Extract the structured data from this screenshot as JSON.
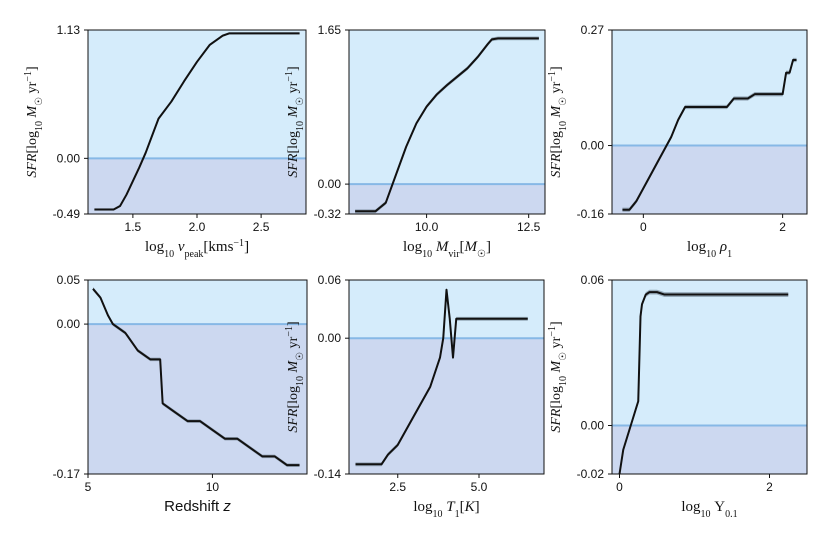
{
  "colors": {
    "above_zero_fill": "#d5ecfb",
    "below_zero_fill": "#ccd8f0",
    "zero_line": "#86b8e6",
    "curve": "#111111",
    "band": "#6d7f8e"
  },
  "chart_data": [
    {
      "type": "line",
      "title": "",
      "xlabel": "log10 v_peak [km s^-1]",
      "ylabel": "SFR [log10 M☉ yr^-1]",
      "xlim": [
        1.15,
        2.85
      ],
      "ylim": [
        -0.49,
        1.13
      ],
      "xticks": [
        1.5,
        2.0,
        2.5
      ],
      "xtick_labels": [
        "1.5",
        "2.0",
        "2.5"
      ],
      "yticks": [
        -0.49,
        0.0,
        1.13
      ],
      "ytick_labels": [
        "-0.49",
        "0.00",
        "1.13"
      ],
      "zero_line": 0.0,
      "x": [
        1.2,
        1.25,
        1.3,
        1.35,
        1.4,
        1.45,
        1.5,
        1.55,
        1.6,
        1.65,
        1.7,
        1.8,
        1.9,
        2.0,
        2.1,
        2.2,
        2.25,
        2.3,
        2.4,
        2.5,
        2.6,
        2.7,
        2.8
      ],
      "y": [
        -0.45,
        -0.45,
        -0.45,
        -0.45,
        -0.42,
        -0.32,
        -0.2,
        -0.08,
        0.05,
        0.2,
        0.35,
        0.5,
        0.68,
        0.85,
        1.0,
        1.08,
        1.1,
        1.1,
        1.1,
        1.1,
        1.1,
        1.1,
        1.1
      ],
      "band": 0.01
    },
    {
      "type": "line",
      "title": "",
      "xlabel": "log10 M_vir [M☉]",
      "ylabel": "SFR [log10 M☉ yr^-1]",
      "xlim": [
        8.1,
        12.9
      ],
      "ylim": [
        -0.32,
        1.65
      ],
      "xticks": [
        10.0,
        12.5
      ],
      "xtick_labels": [
        "10.0",
        "12.5"
      ],
      "yticks": [
        -0.32,
        0.0,
        1.65
      ],
      "ytick_labels": [
        "-0.32",
        "0.00",
        "1.65"
      ],
      "zero_line": 0.0,
      "x": [
        8.25,
        8.5,
        8.75,
        9.0,
        9.25,
        9.5,
        9.75,
        10.0,
        10.25,
        10.5,
        10.75,
        11.0,
        11.25,
        11.5,
        11.6,
        11.75,
        12.0,
        12.25,
        12.5,
        12.75
      ],
      "y": [
        -0.29,
        -0.29,
        -0.29,
        -0.2,
        0.1,
        0.4,
        0.65,
        0.83,
        0.96,
        1.06,
        1.15,
        1.24,
        1.36,
        1.5,
        1.55,
        1.56,
        1.56,
        1.56,
        1.56,
        1.56
      ],
      "band": 0.02
    },
    {
      "type": "line",
      "title": "",
      "xlabel": "log10 ρ1",
      "ylabel": "SFR [log10 M☉ yr^-1]",
      "xlim": [
        -0.45,
        2.35
      ],
      "ylim": [
        -0.16,
        0.27
      ],
      "xticks": [
        0.0,
        2.0
      ],
      "xtick_labels": [
        "0",
        "2"
      ],
      "yticks": [
        -0.16,
        0.0,
        0.27
      ],
      "ytick_labels": [
        "-0.16",
        "0.00",
        "0.27"
      ],
      "zero_line": 0.0,
      "x": [
        -0.3,
        -0.2,
        -0.1,
        0.0,
        0.1,
        0.2,
        0.3,
        0.4,
        0.5,
        0.6,
        0.7,
        0.8,
        1.0,
        1.2,
        1.3,
        1.5,
        1.6,
        1.8,
        2.0,
        2.05,
        2.1,
        2.15,
        2.2
      ],
      "y": [
        -0.15,
        -0.15,
        -0.13,
        -0.1,
        -0.07,
        -0.04,
        -0.01,
        0.02,
        0.06,
        0.09,
        0.09,
        0.09,
        0.09,
        0.09,
        0.11,
        0.11,
        0.12,
        0.12,
        0.12,
        0.17,
        0.17,
        0.2,
        0.2
      ],
      "band": 0.005
    },
    {
      "type": "line",
      "title": "",
      "xlabel": "Redshift z",
      "ylabel": "",
      "xlim": [
        5.0,
        13.8
      ],
      "ylim": [
        -0.17,
        0.05
      ],
      "xticks": [
        5,
        10
      ],
      "xtick_labels": [
        "5",
        "10"
      ],
      "yticks": [
        -0.17,
        0.0,
        0.05
      ],
      "ytick_labels": [
        "-0.17",
        "0.00",
        "0.05"
      ],
      "zero_line": 0.0,
      "x": [
        5.2,
        5.5,
        5.8,
        6.0,
        6.5,
        7.0,
        7.5,
        7.9,
        8.0,
        8.5,
        9.0,
        9.5,
        10.0,
        10.5,
        11.0,
        11.5,
        12.0,
        12.5,
        13.0,
        13.5
      ],
      "y": [
        0.04,
        0.03,
        0.01,
        0.0,
        -0.01,
        -0.03,
        -0.04,
        -0.04,
        -0.09,
        -0.1,
        -0.11,
        -0.11,
        -0.12,
        -0.13,
        -0.13,
        -0.14,
        -0.15,
        -0.15,
        -0.16,
        -0.16
      ],
      "band": 0.002
    },
    {
      "type": "line",
      "title": "",
      "xlabel": "log10 T1 [K]",
      "ylabel": "SFR [log10 M☉ yr^-1]",
      "xlim": [
        1.0,
        7.0
      ],
      "ylim": [
        -0.14,
        0.06
      ],
      "xticks": [
        2.5,
        5.0
      ],
      "xtick_labels": [
        "2.5",
        "5.0"
      ],
      "yticks": [
        -0.14,
        0.0,
        0.06
      ],
      "ytick_labels": [
        "-0.14",
        "0.00",
        "0.06"
      ],
      "zero_line": 0.0,
      "x": [
        1.2,
        1.5,
        2.0,
        2.2,
        2.5,
        3.0,
        3.5,
        3.8,
        3.9,
        4.0,
        4.1,
        4.2,
        4.3,
        4.4,
        4.5,
        5.0,
        5.5,
        6.0,
        6.5
      ],
      "y": [
        -0.13,
        -0.13,
        -0.13,
        -0.12,
        -0.11,
        -0.08,
        -0.05,
        -0.02,
        0.0,
        0.05,
        0.02,
        -0.02,
        0.02,
        0.02,
        0.02,
        0.02,
        0.02,
        0.02,
        0.02
      ],
      "band": 0.002
    },
    {
      "type": "line",
      "title": "",
      "xlabel": "log10 Υ0.1",
      "ylabel": "SFR [log10 M☉ yr^-1]",
      "xlim": [
        -0.1,
        2.5
      ],
      "ylim": [
        -0.02,
        0.06
      ],
      "xticks": [
        0.0,
        2.0
      ],
      "xtick_labels": [
        "0",
        "2"
      ],
      "yticks": [
        -0.02,
        0.0,
        0.06
      ],
      "ytick_labels": [
        "-0.02",
        "0.00",
        "0.06"
      ],
      "zero_line": 0.0,
      "x": [
        0.0,
        0.05,
        0.1,
        0.15,
        0.2,
        0.25,
        0.28,
        0.3,
        0.35,
        0.4,
        0.5,
        0.6,
        0.8,
        1.0,
        1.5,
        2.0,
        2.25
      ],
      "y": [
        -0.02,
        -0.01,
        -0.005,
        0.0,
        0.005,
        0.01,
        0.045,
        0.05,
        0.054,
        0.055,
        0.055,
        0.054,
        0.054,
        0.054,
        0.054,
        0.054,
        0.054
      ],
      "band": 0.001
    }
  ]
}
